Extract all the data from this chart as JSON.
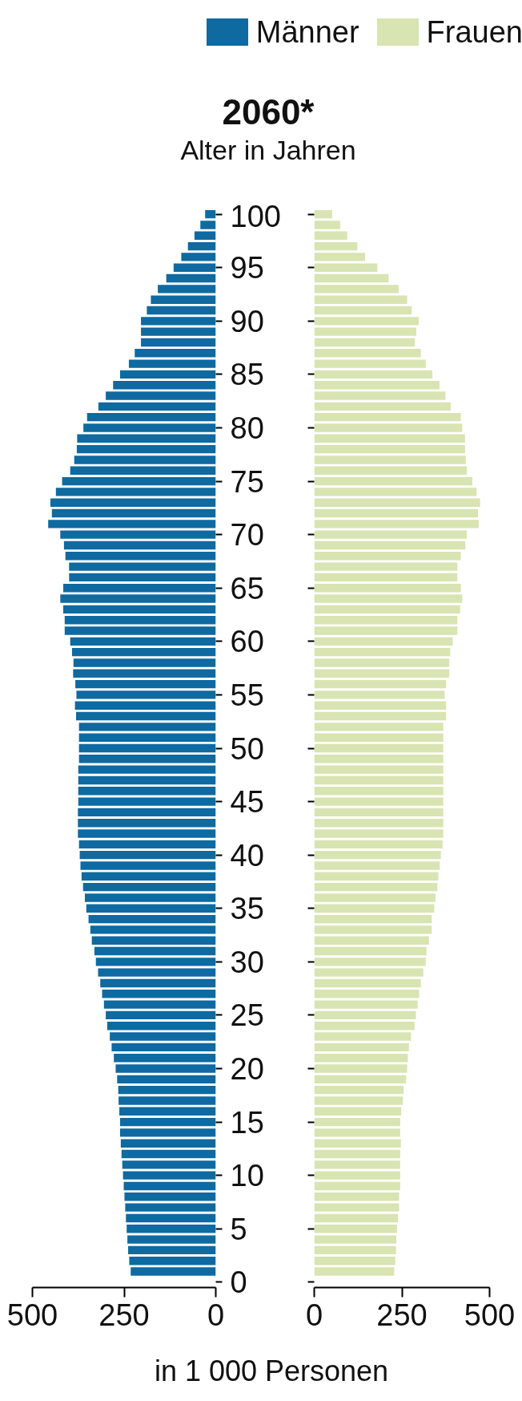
{
  "chart_data": [
    {
      "type": "bar",
      "orientation": "horizontal",
      "title": "2060*",
      "ylabel": "Alter in Jahren",
      "xlabel": "in 1 000 Personen",
      "legend": "top right",
      "grid": false,
      "x": [
        1,
        2,
        3,
        4,
        5,
        6,
        7,
        8,
        9,
        10,
        11,
        12,
        13,
        14,
        15,
        16,
        17,
        18,
        19,
        20,
        21,
        22,
        23,
        24,
        25,
        26,
        27,
        28,
        29,
        30,
        31,
        32,
        33,
        34,
        35,
        36,
        37,
        38,
        39,
        40,
        41,
        42,
        43,
        44,
        45,
        46,
        47,
        48,
        49,
        50,
        51,
        52,
        53,
        54,
        55,
        56,
        57,
        58,
        59,
        60,
        61,
        62,
        63,
        64,
        65,
        66,
        67,
        68,
        69,
        70,
        71,
        72,
        73,
        74,
        75,
        76,
        77,
        78,
        79,
        80,
        81,
        82,
        83,
        84,
        85,
        86,
        87,
        88,
        89,
        90,
        91,
        92,
        93,
        94,
        95,
        96,
        97,
        98,
        99,
        100
      ],
      "xlim": [
        500,
        0
      ],
      "xticks": [
        0,
        250,
        500
      ],
      "ylim": [
        -0.5,
        100.5
      ],
      "yticks": [
        0,
        5,
        10,
        15,
        20,
        25,
        30,
        35,
        40,
        45,
        50,
        55,
        60,
        65,
        70,
        75,
        80,
        85,
        90,
        95,
        100
      ],
      "series": [
        {
          "name": "Männer",
          "color": "#0e6aa1",
          "values": [
            232,
            236,
            239,
            241,
            243,
            245,
            247,
            249,
            251,
            253,
            255,
            257,
            259,
            261,
            261,
            263,
            265,
            266,
            269,
            273,
            278,
            284,
            289,
            296,
            300,
            305,
            310,
            315,
            321,
            327,
            331,
            338,
            342,
            347,
            353,
            357,
            362,
            366,
            369,
            371,
            373,
            376,
            376,
            376,
            375,
            375,
            375,
            375,
            373,
            373,
            373,
            373,
            381,
            384,
            380,
            383,
            389,
            388,
            392,
            397,
            412,
            412,
            416,
            424,
            416,
            400,
            400,
            410,
            414,
            424,
            457,
            447,
            451,
            436,
            419,
            397,
            386,
            379,
            378,
            361,
            351,
            320,
            300,
            280,
            261,
            237,
            221,
            204,
            204,
            204,
            188,
            177,
            158,
            135,
            115,
            94,
            76,
            58,
            42,
            29
          ]
        }
      ]
    },
    {
      "type": "bar",
      "orientation": "horizontal",
      "legend": "top right",
      "grid": false,
      "tick_labels": "x",
      "x": [
        1,
        2,
        3,
        4,
        5,
        6,
        7,
        8,
        9,
        10,
        11,
        12,
        13,
        14,
        15,
        16,
        17,
        18,
        19,
        20,
        21,
        22,
        23,
        24,
        25,
        26,
        27,
        28,
        29,
        30,
        31,
        32,
        33,
        34,
        35,
        36,
        37,
        38,
        39,
        40,
        41,
        42,
        43,
        44,
        45,
        46,
        47,
        48,
        49,
        50,
        51,
        52,
        53,
        54,
        55,
        56,
        57,
        58,
        59,
        60,
        61,
        62,
        63,
        64,
        65,
        66,
        67,
        68,
        69,
        70,
        71,
        72,
        73,
        74,
        75,
        76,
        77,
        78,
        79,
        80,
        81,
        82,
        83,
        84,
        85,
        86,
        87,
        88,
        89,
        90,
        91,
        92,
        93,
        94,
        95,
        96,
        97,
        98,
        99,
        100
      ],
      "xlim": [
        0,
        500
      ],
      "xticks": [
        0,
        250,
        500
      ],
      "ylim": [
        -0.5,
        100.5
      ],
      "yticks": [
        0,
        5,
        10,
        15,
        20,
        25,
        30,
        35,
        40,
        45,
        50,
        55,
        60,
        65,
        70,
        75,
        80,
        85,
        90,
        95,
        100
      ],
      "series": [
        {
          "name": "Frauen",
          "color": "#d8e4b2",
          "values": [
            228,
            231,
            233,
            234,
            236,
            239,
            242,
            242,
            245,
            245,
            245,
            245,
            247,
            245,
            245,
            248,
            253,
            255,
            262,
            265,
            267,
            270,
            276,
            286,
            290,
            295,
            299,
            304,
            311,
            318,
            320,
            327,
            335,
            335,
            342,
            346,
            351,
            354,
            358,
            361,
            366,
            368,
            368,
            368,
            368,
            368,
            368,
            368,
            368,
            368,
            368,
            368,
            376,
            376,
            372,
            376,
            385,
            385,
            388,
            395,
            408,
            408,
            416,
            422,
            418,
            408,
            408,
            418,
            431,
            435,
            469,
            467,
            473,
            463,
            451,
            435,
            432,
            430,
            430,
            422,
            418,
            389,
            374,
            357,
            337,
            318,
            304,
            287,
            291,
            298,
            278,
            265,
            241,
            212,
            180,
            145,
            123,
            94,
            74,
            51
          ]
        }
      ]
    }
  ]
}
